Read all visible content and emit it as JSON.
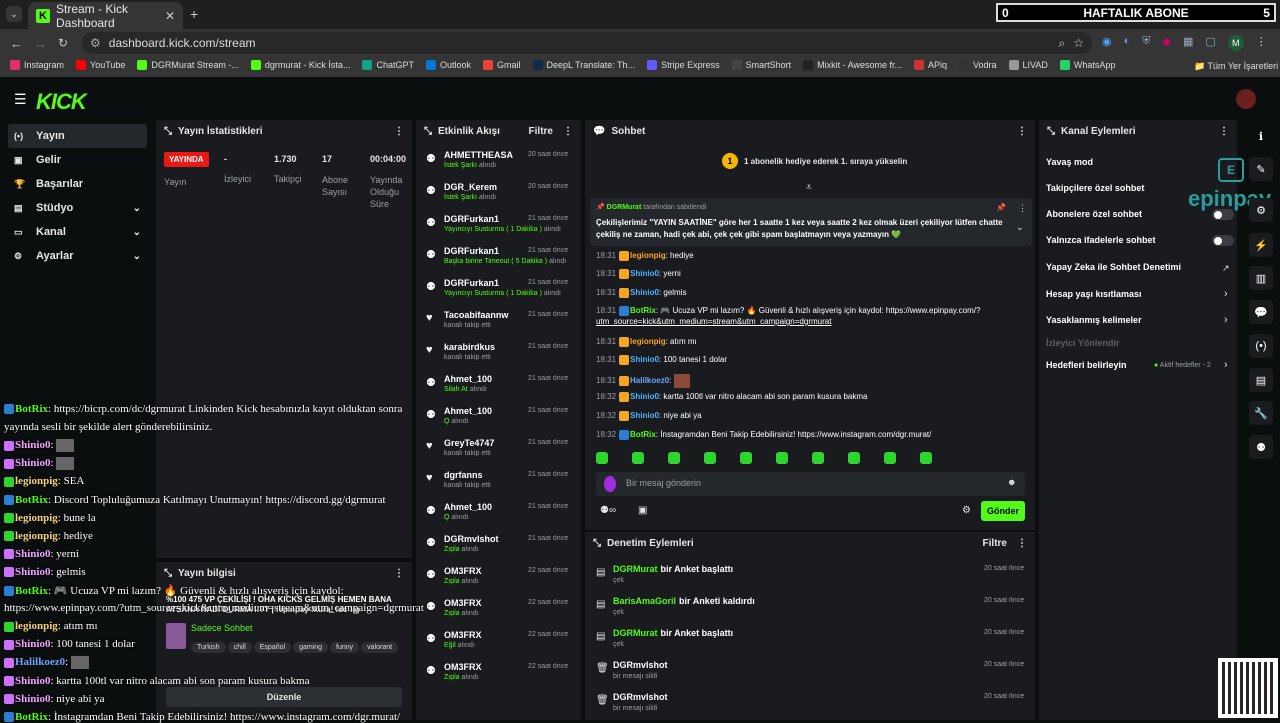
{
  "browser": {
    "tab_title": "Stream - Kick Dashboard",
    "url": "dashboard.kick.com/stream",
    "bookmarks": [
      "Instagram",
      "YouTube",
      "DGRMurat Stream -...",
      "dgrmurat - Kick İsta...",
      "ChatGPT",
      "Outlook",
      "Gmail",
      "DeepL Translate: Th...",
      "Stripe Express",
      "SmartShort",
      "Mixkit - Awesome fr...",
      "APiq",
      "Vodra",
      "LIVAD",
      "WhatsApp"
    ],
    "bookmarks_other": "Tüm Yer İşaretleri",
    "profile_initial": "M"
  },
  "overlay_score": {
    "left": "0",
    "title": "HAFTALIK ABONE",
    "right": "5"
  },
  "sidebar": {
    "items": [
      {
        "label": "Yayın",
        "icon": "broadcast-icon"
      },
      {
        "label": "Gelir",
        "icon": "revenue-icon"
      },
      {
        "label": "Başarılar",
        "icon": "trophy-icon"
      },
      {
        "label": "Stüdyo",
        "icon": "studio-icon"
      },
      {
        "label": "Kanal",
        "icon": "channel-icon"
      },
      {
        "label": "Ayarlar",
        "icon": "gear-icon"
      }
    ]
  },
  "stats": {
    "title": "Yayın İstatistikleri",
    "live_badge": "YAYINDA",
    "live_label": "Yayın",
    "viewers_value": "-",
    "viewers_label": "İzleyici",
    "followers_value": "1.730",
    "followers_label": "Takipçi",
    "subs_value": "17",
    "subs_label": "Abone Sayısı",
    "duration_value": "00:04:00",
    "duration_label": "Yayında Olduğu Süre"
  },
  "feed": {
    "title": "Etkinlik Akışı",
    "filter": "Filtre",
    "items": [
      {
        "name": "AHMETTHEASA",
        "sub_hl": "İstek Şarkı",
        "sub": "alındı",
        "time": "20 saat önce"
      },
      {
        "name": "DGR_Kerem",
        "sub_hl": "İstek Şarkı",
        "sub": "alındı",
        "time": "20 saat önce"
      },
      {
        "name": "DGRFurkan1",
        "sub_hl": "Yayıncıyı Susturma ( 1 Dakika )",
        "sub": "alındı",
        "time": "21 saat önce"
      },
      {
        "name": "DGRFurkan1",
        "sub_hl": "Başka birine Timeout ( 5 Dakika )",
        "sub": "alındı",
        "time": "21 saat önce"
      },
      {
        "name": "DGRFurkan1",
        "sub_hl": "Yayıncıyı Susturma ( 1 Dakika )",
        "sub": "alındı",
        "time": "21 saat önce"
      },
      {
        "name": "Tacoabifaannw",
        "sub_hl": "",
        "sub": "kanalı takip etti",
        "time": "21 saat önce"
      },
      {
        "name": "karabirdkus",
        "sub_hl": "",
        "sub": "kanalı takip etti",
        "time": "21 saat önce"
      },
      {
        "name": "Ahmet_100",
        "sub_hl": "Silah At",
        "sub": "alındı",
        "time": "21 saat önce"
      },
      {
        "name": "Ahmet_100",
        "sub_hl": "Q",
        "sub": "alındı",
        "time": "21 saat önce"
      },
      {
        "name": "GreyTe4747",
        "sub_hl": "",
        "sub": "kanalı takip etti",
        "time": "21 saat önce"
      },
      {
        "name": "dgrfanns",
        "sub_hl": "",
        "sub": "kanalı takip etti",
        "time": "21 saat önce"
      },
      {
        "name": "Ahmet_100",
        "sub_hl": "Q",
        "sub": "alındı",
        "time": "21 saat önce"
      },
      {
        "name": "DGRmvlshot",
        "sub_hl": "Zıpla",
        "sub": "alındı",
        "time": "21 saat önce"
      },
      {
        "name": "OM3FRX",
        "sub_hl": "Zıpla",
        "sub": "alındı",
        "time": "22 saat önce"
      },
      {
        "name": "OM3FRX",
        "sub_hl": "Zıpla",
        "sub": "alındı",
        "time": "22 saat önce"
      },
      {
        "name": "OM3FRX",
        "sub_hl": "Eğil",
        "sub": "alındı",
        "time": "22 saat önce"
      },
      {
        "name": "OM3FRX",
        "sub_hl": "Zıpla",
        "sub": "alındı",
        "time": "22 saat önce"
      }
    ]
  },
  "chat": {
    "title": "Sohbet",
    "gift_banner": "1 abonelik hediye ederek 1. sıraya yükselin",
    "gift_rank": "1",
    "pinned_by": "DGRMurat",
    "pinned_suffix": "tarafından sabitlendi",
    "pinned_text": "Çekilişlerimiz \"YAYIN SAATİNE\" göre her 1 saatte 1 kez veya saatte 2 kez olmak üzeri çekiliyor lütfen chatte çekiliş ne zaman, hadi çek abi, çek çek gibi spam başlatmayın veya yazmayın 💚",
    "messages": [
      {
        "time": "18:31",
        "user": "legionpig",
        "color": "#f5a623",
        "text": "hediye"
      },
      {
        "time": "18:31",
        "user": "Shinio0",
        "color": "#4fb3ff",
        "text": "yerni"
      },
      {
        "time": "18:31",
        "user": "Shinio0",
        "color": "#4fb3ff",
        "text": "gelmis"
      },
      {
        "time": "18:31",
        "user": "BotRix",
        "color": "#53fc18",
        "text": "🎮 Ucuza VP mi lazım? 🔥 Güvenli & hızlı alışveriş için kaydol: https://www.epinpay.com/?",
        "text2": "utm_source=kick&utm_medium=stream&utm_campaign=dgrmurat"
      },
      {
        "time": "18:31",
        "user": "legionpig",
        "color": "#f5a623",
        "text": "atım mı"
      },
      {
        "time": "18:31",
        "user": "Shinio0",
        "color": "#4fb3ff",
        "text": "100 tanesi 1 dolar"
      },
      {
        "time": "18:31",
        "user": "Halilkoez0",
        "color": "#6aa7ff",
        "text": ""
      },
      {
        "time": "18:32",
        "user": "Shinio0",
        "color": "#4fb3ff",
        "text": "kartta 100tl var nitro alacam abi son param kusura bakma"
      },
      {
        "time": "18:32",
        "user": "Shinio0",
        "color": "#4fb3ff",
        "text": "niye abi ya"
      },
      {
        "time": "18:32",
        "user": "BotRix",
        "color": "#53fc18",
        "text": "İnstagramdan Beni Takip Edebilirsiniz! https://www.instagram.com/dgr.murat/"
      }
    ],
    "input_placeholder": "Bir mesaj gönderin",
    "send_label": "Gönder"
  },
  "overlay_chat": [
    {
      "user": "BotRix",
      "text": "https://bicrp.com/dc/dgrmurat Linkinden Kick hesabınızla kayıt olduktan sonra"
    },
    {
      "user": "",
      "text": "yayında sesli bir şekilde alert gönderebilirsiniz."
    },
    {
      "user": "Shinio0",
      "text": ""
    },
    {
      "user": "Shinio0",
      "text": ""
    },
    {
      "user": "legionpig",
      "text": "SEA"
    },
    {
      "user": "BotRix",
      "text": "Discord Topluluğumuza Katılmayı Unutmayın! https://discord.gg/dgrmurat"
    },
    {
      "user": "legionpig",
      "text": "bune la"
    },
    {
      "user": "legionpig",
      "text": "hediye"
    },
    {
      "user": "Shinio0",
      "text": "yerni"
    },
    {
      "user": "Shinio0",
      "text": "gelmis"
    },
    {
      "user": "BotRix",
      "text": "🎮 Ucuza VP mi lazım? 🔥 Güvenli & hızlı alışveriş için kaydol:"
    },
    {
      "user": "",
      "text": "https://www.epinpay.com/?utm_source=kick&utm_medium=stream&utm_campaign=dgrmurat"
    },
    {
      "user": "legionpig",
      "text": "atım mı"
    },
    {
      "user": "Shinio0",
      "text": "100 tanesi 1 dolar"
    },
    {
      "user": "Halilkoez0",
      "text": ""
    },
    {
      "user": "Shinio0",
      "text": "kartta 100tl var nitro alacam abi son param kusura bakma"
    },
    {
      "user": "Shinio0",
      "text": "niye abi ya"
    },
    {
      "user": "BotRix",
      "text": "İnstagramdan Beni Takip Edebilirsiniz! https://www.instagram.com/dgr.murat/"
    }
  ],
  "stream_info": {
    "title": "Yayın bilgisi",
    "stream_title": "%100 475 VP ÇEKİLİŞİ ! OHA KICKS GELMİŞ HEMEN BANA ATSANA HADİ DURMA !!?? | !epinpay !kura! !dc !ig",
    "category": "Sadece Sohbet",
    "tags": [
      "Turkish",
      "chill",
      "Español",
      "gaming",
      "funny",
      "valorant"
    ],
    "edit_label": "Düzenle"
  },
  "moderation": {
    "title": "Denetim Eylemleri",
    "filter": "Filtre",
    "items": [
      {
        "user": "DGRMurat",
        "action": "bir Anket başlattı",
        "sub": "çek",
        "time": "20 saat önce",
        "user_color": "#53fc18",
        "icon": "poll-icon"
      },
      {
        "user": "BarisAmaGoril",
        "action": "bir Anketi kaldırdı",
        "sub": "çek",
        "time": "20 saat önce",
        "user_color": "#53fc18",
        "icon": "poll-icon"
      },
      {
        "user": "DGRMurat",
        "action": "bir Anket başlattı",
        "sub": "çek",
        "time": "20 saat önce",
        "user_color": "#53fc18",
        "icon": "poll-icon"
      },
      {
        "user": "DGRmvlshot",
        "action": "",
        "sub": "bir mesajı sildi",
        "time": "20 saat önce",
        "user_color": "#ffffff",
        "icon": "trash-icon"
      },
      {
        "user": "DGRmvlshot",
        "action": "",
        "sub": "bir mesajı sildi",
        "time": "20 saat önce",
        "user_color": "#ffffff",
        "icon": "trash-icon"
      }
    ]
  },
  "channel_actions": {
    "title": "Kanal Eylemleri",
    "items": [
      "Yavaş mod",
      "Takipçilere özel sohbet",
      "Abonelere özel sohbet",
      "Yalnızca ifadelerle sohbet",
      "Yapay Zeka ile Sohbet Denetimi",
      "Hesap yaşı kısıtlaması",
      "Yasaklanmış kelimeler",
      "İzleyici Yönlendir",
      "Hedefleri belirleyin"
    ],
    "goals_active": "Aktif hedefler - 2"
  },
  "epinpay": "epinpay",
  "colors": {
    "accent": "#53fc18",
    "panel": "#191b1f",
    "live": "#e91916"
  }
}
